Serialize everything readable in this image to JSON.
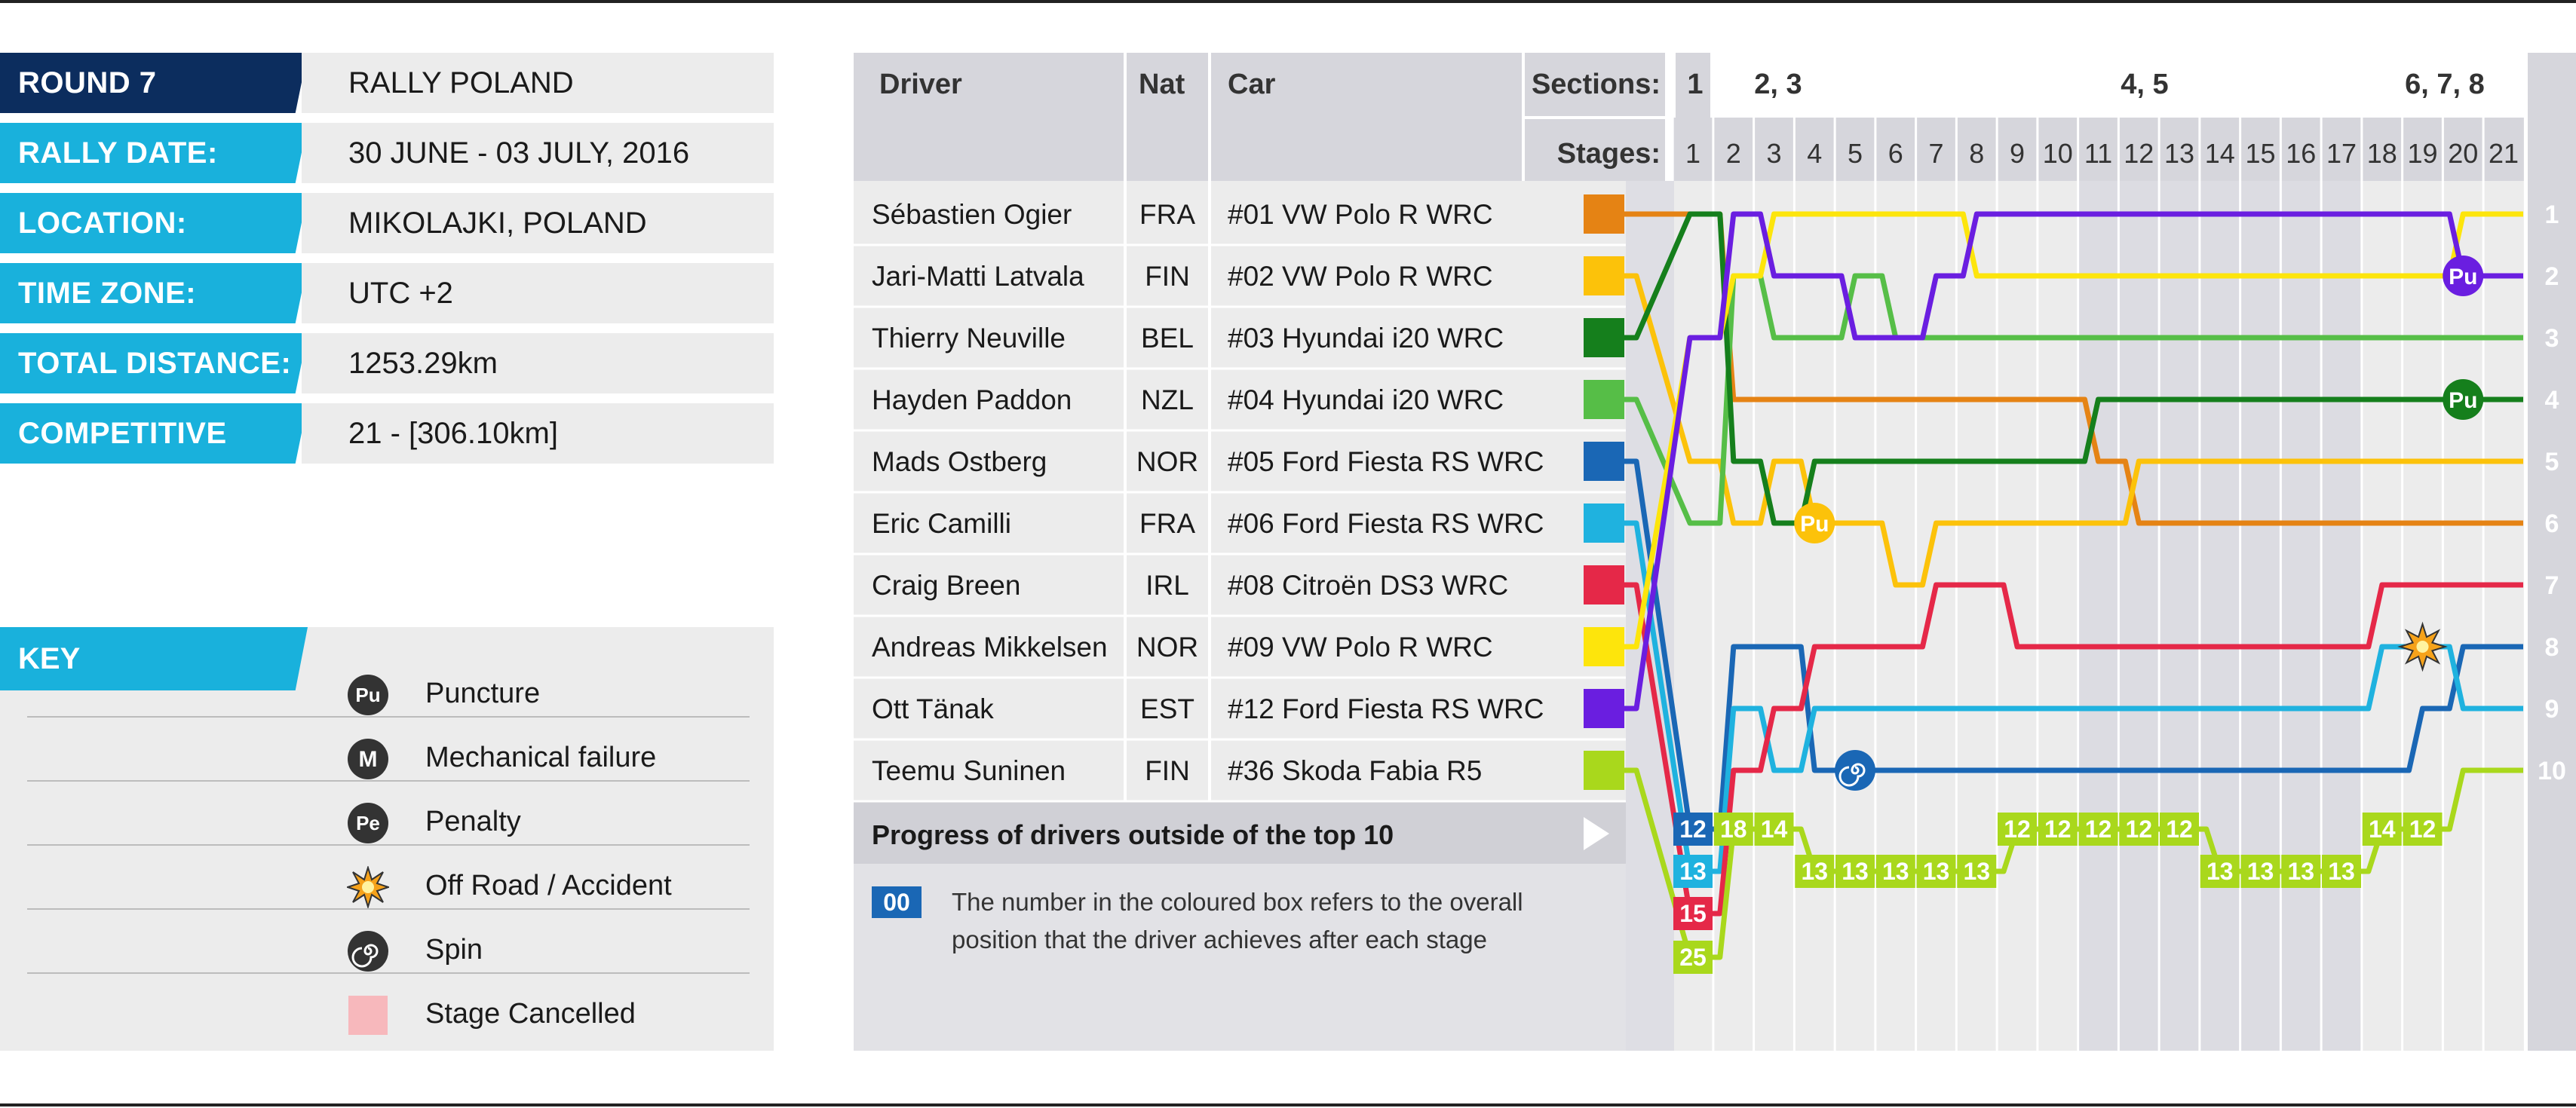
{
  "info": {
    "rows": [
      {
        "label": "ROUND 7",
        "value": "RALLY POLAND",
        "color": "#0c2d5e"
      },
      {
        "label": "RALLY DATE:",
        "value": "30 JUNE - 03 JULY, 2016",
        "color": "#19b1dc"
      },
      {
        "label": "LOCATION:",
        "value": "MIKOLAJKI, POLAND",
        "color": "#19b1dc"
      },
      {
        "label": "TIME ZONE:",
        "value": "UTC +2",
        "color": "#19b1dc"
      },
      {
        "label": "TOTAL DISTANCE:",
        "value": "1253.29km",
        "color": "#19b1dc"
      },
      {
        "label": "COMPETITIVE STAGES:",
        "value": "21 - [306.10km]",
        "color": "#19b1dc"
      }
    ]
  },
  "key": {
    "title": "KEY",
    "items": [
      {
        "icon": "puncture-icon",
        "glyph": "Pu",
        "label": "Puncture"
      },
      {
        "icon": "mechanical-failure-icon",
        "glyph": "M",
        "label": "Mechanical failure"
      },
      {
        "icon": "penalty-icon",
        "glyph": "Pe",
        "label": "Penalty"
      },
      {
        "icon": "off-road-accident-icon",
        "glyph": "",
        "label": "Off Road / Accident"
      },
      {
        "icon": "spin-icon",
        "glyph": "",
        "label": "Spin"
      },
      {
        "icon": "stage-cancelled-icon",
        "glyph": "",
        "label": "Stage Cancelled"
      }
    ]
  },
  "table": {
    "headers": {
      "driver": "Driver",
      "nat": "Nat",
      "car": "Car",
      "sections": "Sections:",
      "stages": "Stages:"
    },
    "sections": [
      "1",
      "2, 3",
      "4, 5",
      "6, 7, 8"
    ],
    "drivers": [
      {
        "name": "Sébastien Ogier",
        "nat": "FRA",
        "car": "#01  VW Polo R WRC",
        "color": "#e58314"
      },
      {
        "name": "Jari-Matti Latvala",
        "nat": "FIN",
        "car": "#02  VW Polo R WRC",
        "color": "#fcc20a"
      },
      {
        "name": "Thierry Neuville",
        "nat": "BEL",
        "car": "#03  Hyundai i20 WRC",
        "color": "#157f1c"
      },
      {
        "name": "Hayden Paddon",
        "nat": "NZL",
        "car": "#04  Hyundai i20 WRC",
        "color": "#56be47"
      },
      {
        "name": "Mads Ostberg",
        "nat": "NOR",
        "car": "#05  Ford Fiesta RS WRC",
        "color": "#1a67b5"
      },
      {
        "name": "Eric Camilli",
        "nat": "FRA",
        "car": "#06  Ford Fiesta RS WRC",
        "color": "#1fb2df"
      },
      {
        "name": "Craig Breen",
        "nat": "IRL",
        "car": "#08  Citroën DS3 WRC",
        "color": "#e52848"
      },
      {
        "name": "Andreas Mikkelsen",
        "nat": "NOR",
        "car": "#09  VW Polo R WRC",
        "color": "#fde50c"
      },
      {
        "name": "Ott Tänak",
        "nat": "EST",
        "car": "#12  Ford Fiesta RS WRC",
        "color": "#6a1ee0"
      },
      {
        "name": "Teemu Suninen",
        "nat": "FIN",
        "car": "#36  Skoda Fabia R5",
        "color": "#a9d81c"
      }
    ],
    "outside_title": "Progress of drivers outside of the top 10",
    "note_box": "00",
    "note_text_1": "The number in the coloured box refers to the overall",
    "note_text_2": "position that the driver achieves after each stage"
  },
  "chart_data": {
    "type": "line",
    "x": [
      1,
      2,
      3,
      4,
      5,
      6,
      7,
      8,
      9,
      10,
      11,
      12,
      13,
      14,
      15,
      16,
      17,
      18,
      19,
      20,
      21
    ],
    "xlabel": "Stages:",
    "ylabel": "",
    "y_right_labels": [
      "1",
      "2",
      "3",
      "4",
      "5",
      "6",
      "7",
      "8",
      "9",
      "10"
    ],
    "ylim": [
      1,
      10
    ],
    "y_inverted": true,
    "series": [
      {
        "name": "Sébastien Ogier",
        "color": "#e58314",
        "values": [
          1,
          4,
          4,
          4,
          4,
          4,
          4,
          4,
          4,
          4,
          5,
          6,
          6,
          6,
          6,
          6,
          6,
          6,
          6,
          6,
          6
        ]
      },
      {
        "name": "Jari-Matti Latvala",
        "color": "#fcc20a",
        "values": [
          5,
          6,
          5,
          6,
          6,
          7,
          6,
          6,
          6,
          6,
          6,
          5,
          5,
          5,
          5,
          5,
          5,
          5,
          5,
          5,
          5
        ]
      },
      {
        "name": "Thierry Neuville",
        "color": "#157f1c",
        "values": [
          1,
          5,
          6,
          5,
          5,
          5,
          5,
          5,
          5,
          5,
          4,
          4,
          4,
          4,
          4,
          4,
          4,
          4,
          4,
          4,
          4
        ]
      },
      {
        "name": "Hayden Paddon",
        "color": "#56be47",
        "values": [
          6,
          2,
          3,
          3,
          2,
          3,
          3,
          3,
          3,
          3,
          3,
          3,
          3,
          3,
          3,
          3,
          3,
          3,
          3,
          3,
          3
        ]
      },
      {
        "name": "Mads Ostberg",
        "color": "#1a67b5",
        "values": [
          12,
          8,
          8,
          10,
          10,
          10,
          10,
          10,
          10,
          10,
          10,
          10,
          10,
          10,
          10,
          10,
          10,
          10,
          9,
          8,
          8
        ]
      },
      {
        "name": "Eric Camilli",
        "color": "#1fb2df",
        "values": [
          13,
          9,
          10,
          9,
          9,
          9,
          9,
          9,
          9,
          9,
          9,
          9,
          9,
          9,
          9,
          9,
          9,
          8,
          8,
          9,
          9
        ]
      },
      {
        "name": "Craig Breen",
        "color": "#e52848",
        "values": [
          15,
          10,
          9,
          8,
          8,
          8,
          7,
          7,
          8,
          8,
          8,
          8,
          8,
          8,
          8,
          8,
          8,
          7,
          7,
          7,
          7
        ]
      },
      {
        "name": "Andreas Mikkelsen",
        "color": "#fde50c",
        "values": [
          3,
          2,
          1,
          1,
          1,
          1,
          1,
          2,
          2,
          2,
          2,
          2,
          2,
          2,
          2,
          2,
          2,
          2,
          2,
          1,
          1
        ]
      },
      {
        "name": "Ott Tänak",
        "color": "#6a1ee0",
        "values": [
          3,
          1,
          2,
          2,
          3,
          3,
          2,
          1,
          1,
          1,
          1,
          1,
          1,
          1,
          1,
          1,
          1,
          1,
          1,
          2,
          2
        ]
      },
      {
        "name": "Teemu Suninen",
        "color": "#a9d81c",
        "values": [
          25,
          18,
          14,
          13,
          13,
          13,
          13,
          13,
          12,
          12,
          12,
          12,
          12,
          13,
          13,
          13,
          13,
          14,
          12,
          10,
          10
        ]
      }
    ],
    "outside_boxes": [
      {
        "driver": "Mads Ostberg",
        "stage": 1,
        "label": "12"
      },
      {
        "driver": "Eric Camilli",
        "stage": 1,
        "label": "13"
      },
      {
        "driver": "Craig Breen",
        "stage": 1,
        "label": "15"
      },
      {
        "driver": "Teemu Suninen",
        "stage": 1,
        "label": "25"
      },
      {
        "driver": "Teemu Suninen",
        "stage": 2,
        "label": "18"
      },
      {
        "driver": "Teemu Suninen",
        "stage": 3,
        "label": "14"
      },
      {
        "driver": "Teemu Suninen",
        "stage": 4,
        "label": "13"
      },
      {
        "driver": "Teemu Suninen",
        "stage": 5,
        "label": "13"
      },
      {
        "driver": "Teemu Suninen",
        "stage": 6,
        "label": "13"
      },
      {
        "driver": "Teemu Suninen",
        "stage": 7,
        "label": "13"
      },
      {
        "driver": "Teemu Suninen",
        "stage": 8,
        "label": "13"
      },
      {
        "driver": "Teemu Suninen",
        "stage": 9,
        "label": "12"
      },
      {
        "driver": "Teemu Suninen",
        "stage": 10,
        "label": "12"
      },
      {
        "driver": "Teemu Suninen",
        "stage": 11,
        "label": "12"
      },
      {
        "driver": "Teemu Suninen",
        "stage": 12,
        "label": "12"
      },
      {
        "driver": "Teemu Suninen",
        "stage": 13,
        "label": "12"
      },
      {
        "driver": "Teemu Suninen",
        "stage": 14,
        "label": "13"
      },
      {
        "driver": "Teemu Suninen",
        "stage": 15,
        "label": "13"
      },
      {
        "driver": "Teemu Suninen",
        "stage": 16,
        "label": "13"
      },
      {
        "driver": "Teemu Suninen",
        "stage": 17,
        "label": "13"
      },
      {
        "driver": "Teemu Suninen",
        "stage": 18,
        "label": "14"
      },
      {
        "driver": "Teemu Suninen",
        "stage": 19,
        "label": "12"
      }
    ],
    "events": [
      {
        "driver": "Jari-Matti Latvala",
        "stage": 4,
        "type": "puncture",
        "glyph": "Pu"
      },
      {
        "driver": "Ott Tänak",
        "stage": 20,
        "type": "puncture",
        "glyph": "Pu"
      },
      {
        "driver": "Thierry Neuville",
        "stage": 20,
        "type": "puncture",
        "glyph": "Pu"
      },
      {
        "driver": "Eric Camilli",
        "stage": 19,
        "type": "off-road-accident",
        "glyph": ""
      },
      {
        "driver": "Mads Ostberg",
        "stage": 5,
        "type": "spin",
        "glyph": ""
      }
    ]
  }
}
